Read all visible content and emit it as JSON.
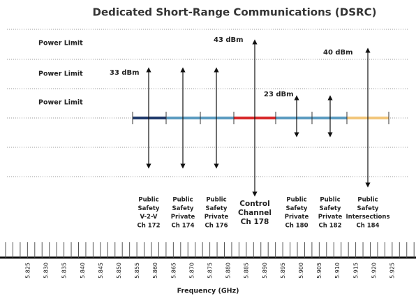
{
  "title": "Dedicated Short-Range Communications (DSRC)",
  "power_limits": [
    "Power Limit",
    "Power Limit",
    "Power Limit"
  ],
  "power_levels": [
    "43 dBm",
    "33 dBm",
    "23 dBm",
    "40 dBm"
  ],
  "channels": [
    {
      "lines": [
        "Public",
        "Safety",
        "V-2-V",
        "Ch 172"
      ]
    },
    {
      "lines": [
        "Public",
        "Safety",
        "Private",
        "Ch 174"
      ]
    },
    {
      "lines": [
        "Public",
        "Safety",
        "Private",
        "Ch 176"
      ]
    },
    {
      "lines": [
        "Control",
        "Channel",
        "Ch 178"
      ]
    },
    {
      "lines": [
        "Public",
        "Safety",
        "Private",
        "Ch 180"
      ]
    },
    {
      "lines": [
        "Public",
        "Safety",
        "Private",
        "Ch 182"
      ]
    },
    {
      "lines": [
        "Public",
        "Safety",
        "Intersections",
        "Ch 184"
      ]
    }
  ],
  "frequency_axis": {
    "label": "Frequency (GHz)",
    "ticks": [
      "5.825",
      "5.830",
      "5.835",
      "5.840",
      "5.845",
      "5.850",
      "5.855",
      "5.860",
      "5.865",
      "5.870",
      "5.875",
      "5.880",
      "5.885",
      "5.890",
      "5.895",
      "5.900",
      "5.905",
      "5.910",
      "5.915",
      "5.920",
      "5.925"
    ]
  }
}
